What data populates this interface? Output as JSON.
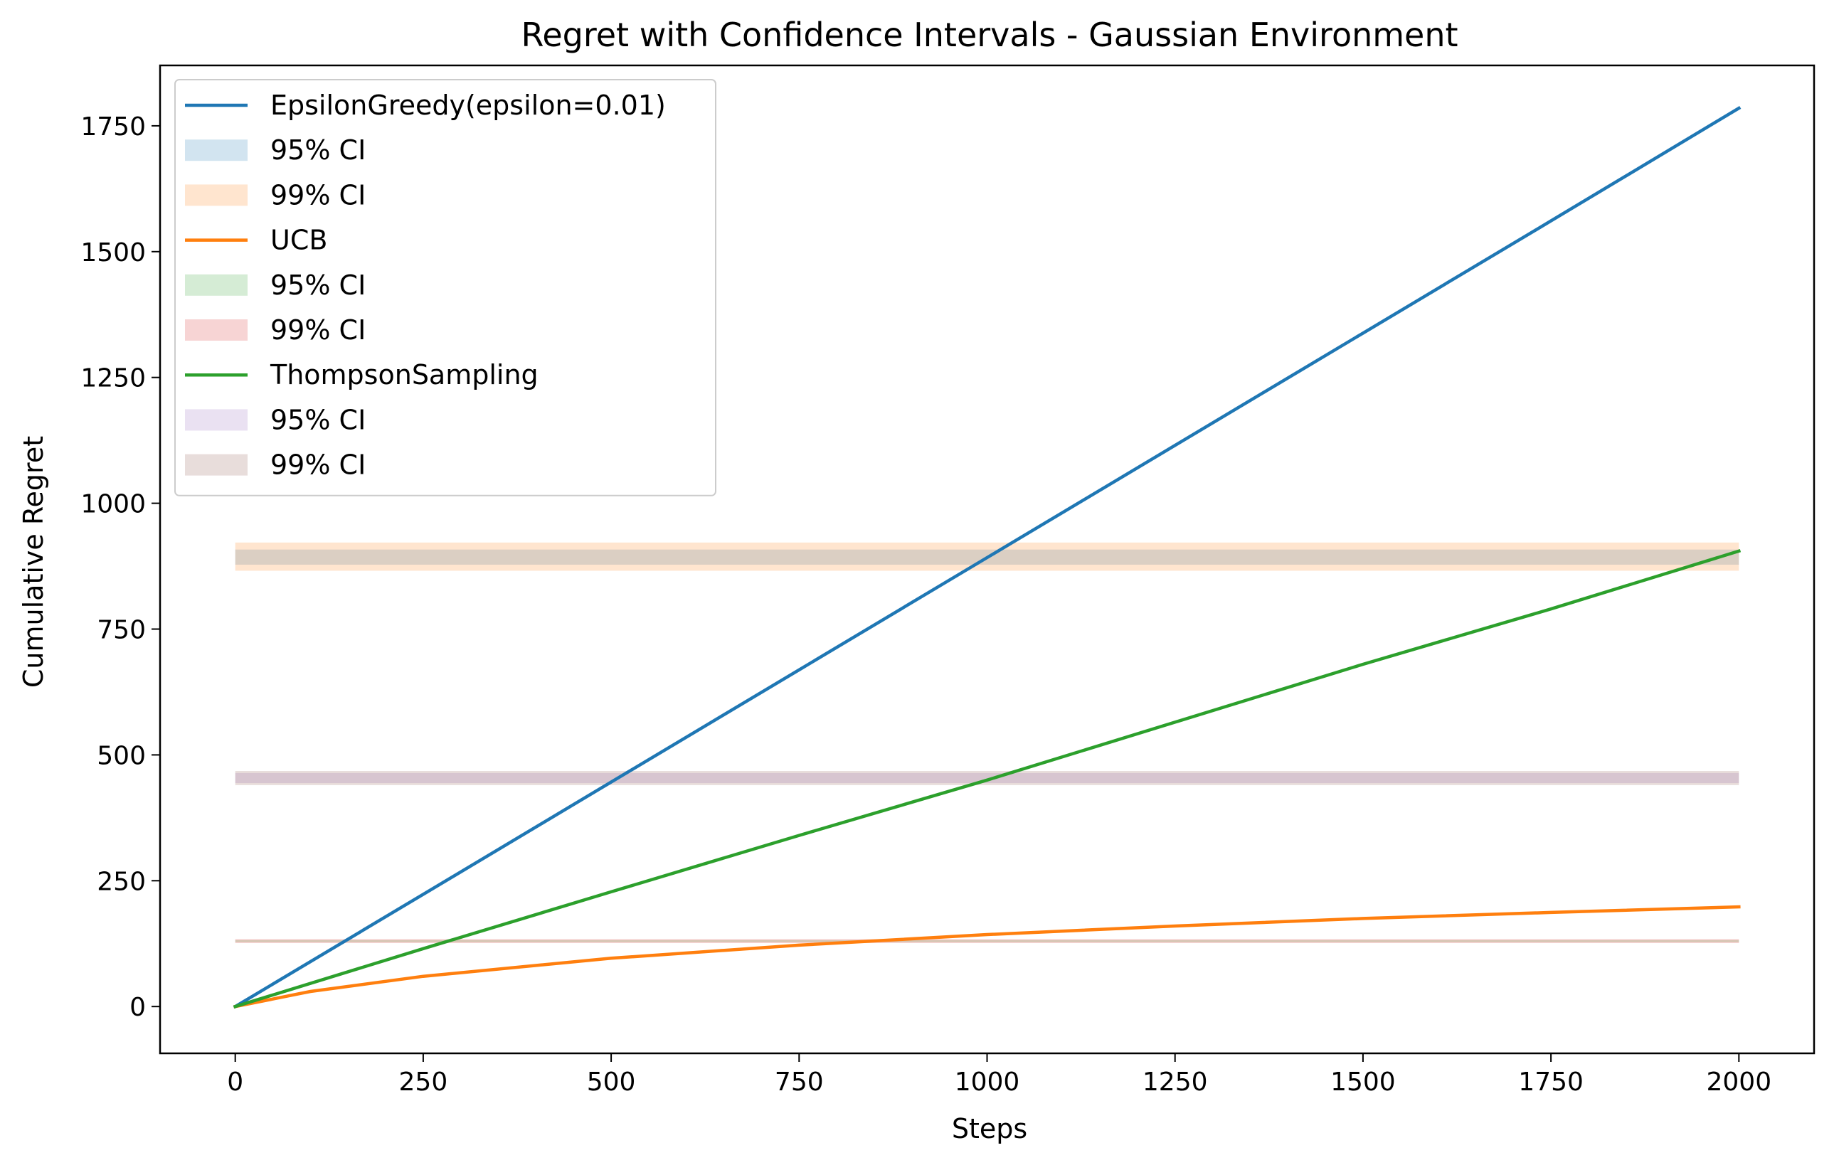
{
  "chart_data": {
    "type": "line",
    "title": "Regret with Confidence Intervals - Gaussian Environment",
    "xlabel": "Steps",
    "ylabel": "Cumulative Regret",
    "xlim": [
      -100,
      2100
    ],
    "ylim": [
      -93,
      1870
    ],
    "xticks": [
      0,
      250,
      500,
      750,
      1000,
      1250,
      1500,
      1750,
      2000
    ],
    "yticks": [
      0,
      250,
      500,
      750,
      1000,
      1250,
      1500,
      1750
    ],
    "grid": false,
    "legend_position": "top-left",
    "series": [
      {
        "name": "EpsilonGreedy(epsilon=0.01)",
        "color": "#1f77b4",
        "x": [
          0,
          250,
          500,
          750,
          1000,
          1250,
          1500,
          1750,
          2000
        ],
        "y": [
          0,
          223,
          446,
          669,
          892,
          1115,
          1338,
          1561,
          1785
        ]
      },
      {
        "name": "UCB",
        "color": "#ff7f0e",
        "x": [
          0,
          100,
          250,
          500,
          750,
          1000,
          1250,
          1500,
          1750,
          2000
        ],
        "y": [
          0,
          30,
          60,
          96,
          122,
          143,
          160,
          175,
          187,
          198
        ]
      },
      {
        "name": "ThompsonSampling",
        "color": "#2ca02c",
        "x": [
          0,
          250,
          500,
          750,
          1000,
          1250,
          1500,
          1750,
          2000
        ],
        "y": [
          0,
          115,
          228,
          340,
          450,
          565,
          680,
          790,
          905
        ]
      }
    ],
    "bands": [
      {
        "name": "95% CI",
        "color": "#1f77b4",
        "opacity": 0.2,
        "x": [
          0,
          2000
        ],
        "low": 878,
        "high": 908
      },
      {
        "name": "99% CI",
        "color": "#ff7f0e",
        "opacity": 0.2,
        "x": [
          0,
          2000
        ],
        "low": 866,
        "high": 922
      },
      {
        "name": "95% CI",
        "color": "#2ca02c",
        "opacity": 0.2,
        "x": [
          0,
          2000
        ],
        "low": 128,
        "high": 132
      },
      {
        "name": "99% CI",
        "color": "#d62728",
        "opacity": 0.2,
        "x": [
          0,
          2000
        ],
        "low": 126,
        "high": 134
      },
      {
        "name": "95% CI",
        "color": "#9467bd",
        "opacity": 0.2,
        "x": [
          0,
          2000
        ],
        "low": 444,
        "high": 464
      },
      {
        "name": "99% CI",
        "color": "#8c564b",
        "opacity": 0.2,
        "x": [
          0,
          2000
        ],
        "low": 440,
        "high": 468
      }
    ],
    "legend": [
      {
        "label": "EpsilonGreedy(epsilon=0.01)",
        "kind": "line",
        "color": "#1f77b4"
      },
      {
        "label": "95% CI",
        "kind": "patch",
        "color": "#1f77b4"
      },
      {
        "label": "99% CI",
        "kind": "patch",
        "color": "#ff7f0e"
      },
      {
        "label": "UCB",
        "kind": "line",
        "color": "#ff7f0e"
      },
      {
        "label": "95% CI",
        "kind": "patch",
        "color": "#2ca02c"
      },
      {
        "label": "99% CI",
        "kind": "patch",
        "color": "#d62728"
      },
      {
        "label": "ThompsonSampling",
        "kind": "line",
        "color": "#2ca02c"
      },
      {
        "label": "95% CI",
        "kind": "patch",
        "color": "#9467bd"
      },
      {
        "label": "99% CI",
        "kind": "patch",
        "color": "#8c564b"
      }
    ]
  }
}
